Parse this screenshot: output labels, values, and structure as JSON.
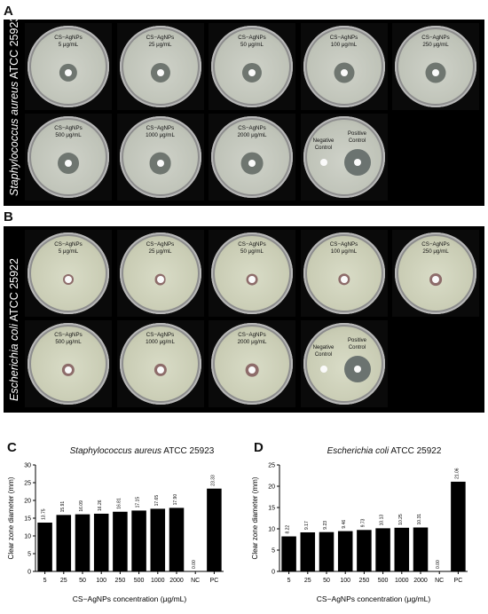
{
  "panels": {
    "a": {
      "letter": "A",
      "organism": "Staphylococcus aureus",
      "strain": " ATCC 25923",
      "plates": [
        {
          "line1": "CS−AgNPs",
          "line2": "5 μg/mL",
          "zone": 0.22
        },
        {
          "line1": "CS−AgNPs",
          "line2": "25 μg/mL",
          "zone": 0.24
        },
        {
          "line1": "CS−AgNPs",
          "line2": "50 μg/mL",
          "zone": 0.24
        },
        {
          "line1": "CS−AgNPs",
          "line2": "100 μg/mL",
          "zone": 0.25
        },
        {
          "line1": "CS−AgNPs",
          "line2": "250 μg/mL",
          "zone": 0.25
        },
        {
          "line1": "CS−AgNPs",
          "line2": "500 μg/mL",
          "zone": 0.26
        },
        {
          "line1": "CS−AgNPs",
          "line2": "1000 μg/mL",
          "zone": 0.27
        },
        {
          "line1": "CS−AgNPs",
          "line2": "2000 μg/mL",
          "zone": 0.27
        }
      ],
      "control": {
        "negative_line1": "Negative",
        "negative_line2": "Control",
        "positive_line1": "Positive",
        "positive_line2": "Control"
      }
    },
    "b": {
      "letter": "B",
      "organism": "Escherichia coli",
      "strain": " ATCC 25922",
      "plates": [
        {
          "line1": "CS−AgNPs",
          "line2": "5 μg/mL",
          "zone": 0.13
        },
        {
          "line1": "CS−AgNPs",
          "line2": "25 μg/mL",
          "zone": 0.14
        },
        {
          "line1": "CS−AgNPs",
          "line2": "50 μg/mL",
          "zone": 0.14
        },
        {
          "line1": "CS−AgNPs",
          "line2": "100 μg/mL",
          "zone": 0.145
        },
        {
          "line1": "CS−AgNPs",
          "line2": "250 μg/mL",
          "zone": 0.15
        },
        {
          "line1": "CS−AgNPs",
          "line2": "500 μg/mL",
          "zone": 0.155
        },
        {
          "line1": "CS−AgNPs",
          "line2": "1000 μg/mL",
          "zone": 0.155
        },
        {
          "line1": "CS−AgNPs",
          "line2": "2000 μg/mL",
          "zone": 0.16
        }
      ],
      "control": {
        "negative_line1": "Negative",
        "negative_line2": "Control",
        "positive_line1": "Positive",
        "positive_line2": "Control"
      }
    }
  },
  "colors": {
    "zone_sa": "#6f7670",
    "zone_ec": "#8d6c6a",
    "bar": "#000000"
  },
  "chart_data": [
    {
      "panel": "C",
      "type": "bar",
      "title_italic": "Staphylococcus aureus",
      "title_rest": " ATCC 25923",
      "xlabel": "CS−AgNPs concentration (μg/mL)",
      "ylabel": "Clear zone diameter (mm)",
      "ylim": [
        0,
        30
      ],
      "yticks": [
        0,
        5,
        10,
        15,
        20,
        25,
        30
      ],
      "categories": [
        "5",
        "25",
        "50",
        "100",
        "250",
        "500",
        "1000",
        "2000",
        "NC",
        "PC"
      ],
      "values": [
        13.75,
        15.91,
        16.09,
        16.26,
        16.81,
        17.15,
        17.65,
        17.9,
        0.0,
        23.33
      ],
      "labels": [
        "13.75",
        "15.91",
        "16.09",
        "16.26",
        "16.81",
        "17.15",
        "17.65",
        "17.90",
        "0.00",
        "23.33"
      ]
    },
    {
      "panel": "D",
      "type": "bar",
      "title_italic": "Escherichia coli",
      "title_rest": " ATCC 25922",
      "xlabel": "CS−AgNPs concentration (μg/mL)",
      "ylabel": "Clear zone diameter (mm)",
      "ylim": [
        0,
        25
      ],
      "yticks": [
        0,
        5,
        10,
        15,
        20,
        25
      ],
      "categories": [
        "5",
        "25",
        "50",
        "100",
        "250",
        "500",
        "1000",
        "2000",
        "NC",
        "PC"
      ],
      "values": [
        8.22,
        9.17,
        9.23,
        9.46,
        9.73,
        10.13,
        10.25,
        10.31,
        0.0,
        21.06
      ],
      "labels": [
        "8.22",
        "9.17",
        "9.23",
        "9.46",
        "9.73",
        "10.13",
        "10.25",
        "10.31",
        "0.00",
        "21.06"
      ]
    }
  ]
}
